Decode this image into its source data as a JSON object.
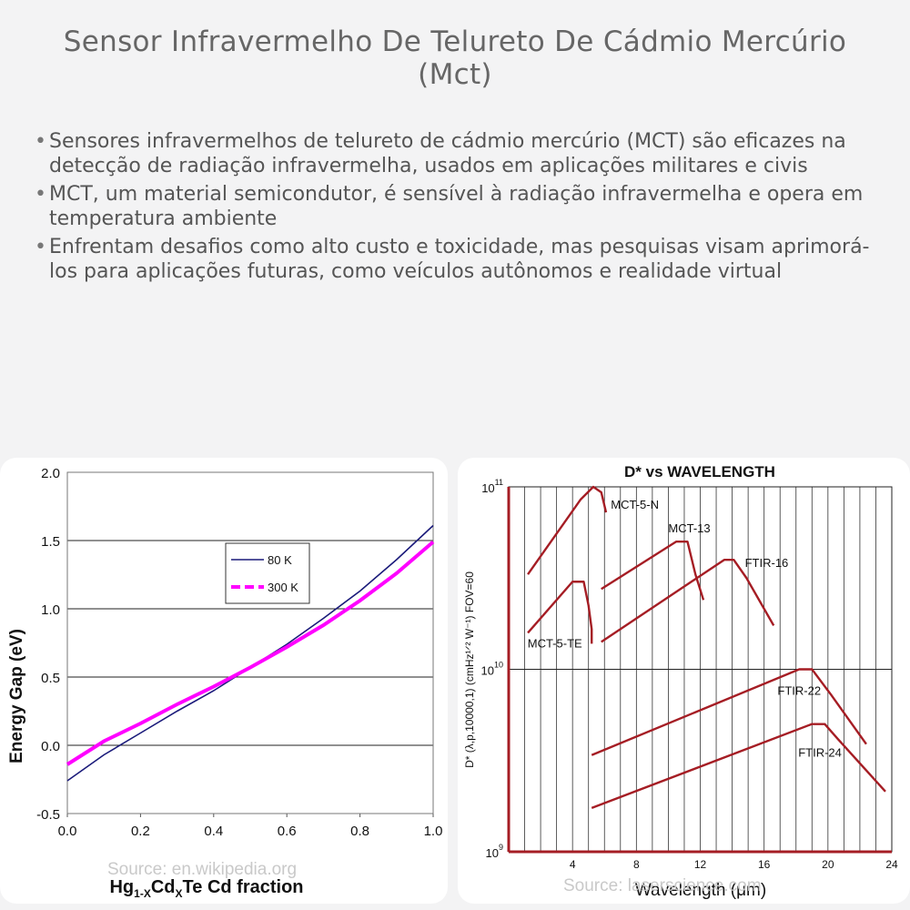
{
  "title": "Sensor Infravermelho De Telureto De Cádmio Mercúrio (Mct)",
  "bullets": [
    "Sensores infravermelhos de telureto de cádmio mercúrio (MCT) são eficazes na detecção de radiação infravermelha, usados em aplicações militares e civis",
    "MCT, um material semicondutor, é sensível à radiação infravermelha e opera em temperatura ambiente",
    "Enfrentam desafios como alto custo e toxicidade, mas pesquisas visam aprimorá-los para aplicações futuras, como veículos autônomos e realidade virtual"
  ],
  "colors": {
    "blue": "#1a1a7a",
    "magenta": "#ff00ff",
    "red": "#a51d24"
  },
  "chart_data": [
    {
      "type": "line",
      "title": "",
      "xlabel_parts": {
        "a": "Hg",
        "b": "1-X",
        "c": "Cd",
        "d": "X",
        "e": "Te Cd fraction"
      },
      "ylabel": "Energy Gap (eV)",
      "xlim": [
        0,
        1.0
      ],
      "ylim": [
        -0.5,
        2.0
      ],
      "xticks": [
        "0.0",
        "0.2",
        "0.4",
        "0.6",
        "0.8",
        "1.0"
      ],
      "yticks": [
        "-0.5",
        "0.0",
        "0.5",
        "1.0",
        "1.5",
        "2.0"
      ],
      "legend_position": "center-right",
      "grid": true,
      "series": [
        {
          "name": "80 K",
          "color": "#1a1a7a",
          "x": [
            0,
            0.1,
            0.2,
            0.3,
            0.4,
            0.5,
            0.6,
            0.7,
            0.8,
            0.9,
            1.0
          ],
          "y": [
            -0.26,
            -0.07,
            0.09,
            0.25,
            0.4,
            0.57,
            0.74,
            0.93,
            1.13,
            1.36,
            1.61
          ]
        },
        {
          "name": "300 K",
          "color": "#ff00ff",
          "x": [
            0,
            0.1,
            0.2,
            0.3,
            0.4,
            0.5,
            0.6,
            0.7,
            0.8,
            0.9,
            1.0
          ],
          "y": [
            -0.14,
            0.03,
            0.16,
            0.3,
            0.43,
            0.57,
            0.72,
            0.88,
            1.06,
            1.26,
            1.49
          ]
        }
      ],
      "source": "Source: en.wikipedia.org"
    },
    {
      "type": "line",
      "title": "D* vs WAVELENGTH",
      "xlabel": "Wavelength (μm)",
      "ylabel": "D* (λ,p,10000,1)  (cmHz¹ᐟ² W⁻¹)  FOV=60",
      "xlim": [
        0,
        24
      ],
      "ylim_log10": [
        9,
        11
      ],
      "xticks": [
        "4",
        "8",
        "12",
        "16",
        "20",
        "24"
      ],
      "yticks": [
        {
          "base": "10",
          "exp": "9"
        },
        {
          "base": "10",
          "exp": "10"
        },
        {
          "base": "10",
          "exp": "11"
        }
      ],
      "grid": true,
      "series": [
        {
          "name": "MCT-5-N",
          "x": [
            1.2,
            4.5,
            5.3,
            5.8,
            6.1
          ],
          "log10D": [
            10.52,
            10.93,
            11.0,
            10.97,
            10.86
          ]
        },
        {
          "name": "MCT-13",
          "x": [
            5.8,
            10.5,
            11.2,
            11.7,
            12.2
          ],
          "log10D": [
            10.44,
            10.7,
            10.7,
            10.52,
            10.38
          ]
        },
        {
          "name": "FTIR-16",
          "x": [
            5.8,
            13.5,
            14.1,
            14.9,
            16.6
          ],
          "log10D": [
            10.15,
            10.6,
            10.6,
            10.5,
            10.24
          ]
        },
        {
          "name": "MCT-5-TE",
          "x": [
            1.2,
            4.0,
            4.7,
            5.0,
            5.2,
            5.2
          ],
          "log10D": [
            10.2,
            10.48,
            10.48,
            10.35,
            10.22,
            10.14
          ]
        },
        {
          "name": "FTIR-22",
          "x": [
            5.2,
            18.2,
            19.0,
            20.2,
            22.4
          ],
          "log10D": [
            9.53,
            10.0,
            10.0,
            9.86,
            9.59
          ]
        },
        {
          "name": "FTIR-24",
          "x": [
            5.2,
            19.0,
            19.8,
            20.6,
            23.6
          ],
          "log10D": [
            9.24,
            9.7,
            9.7,
            9.62,
            9.33
          ]
        }
      ],
      "source": "Source: laserscience.com"
    }
  ]
}
